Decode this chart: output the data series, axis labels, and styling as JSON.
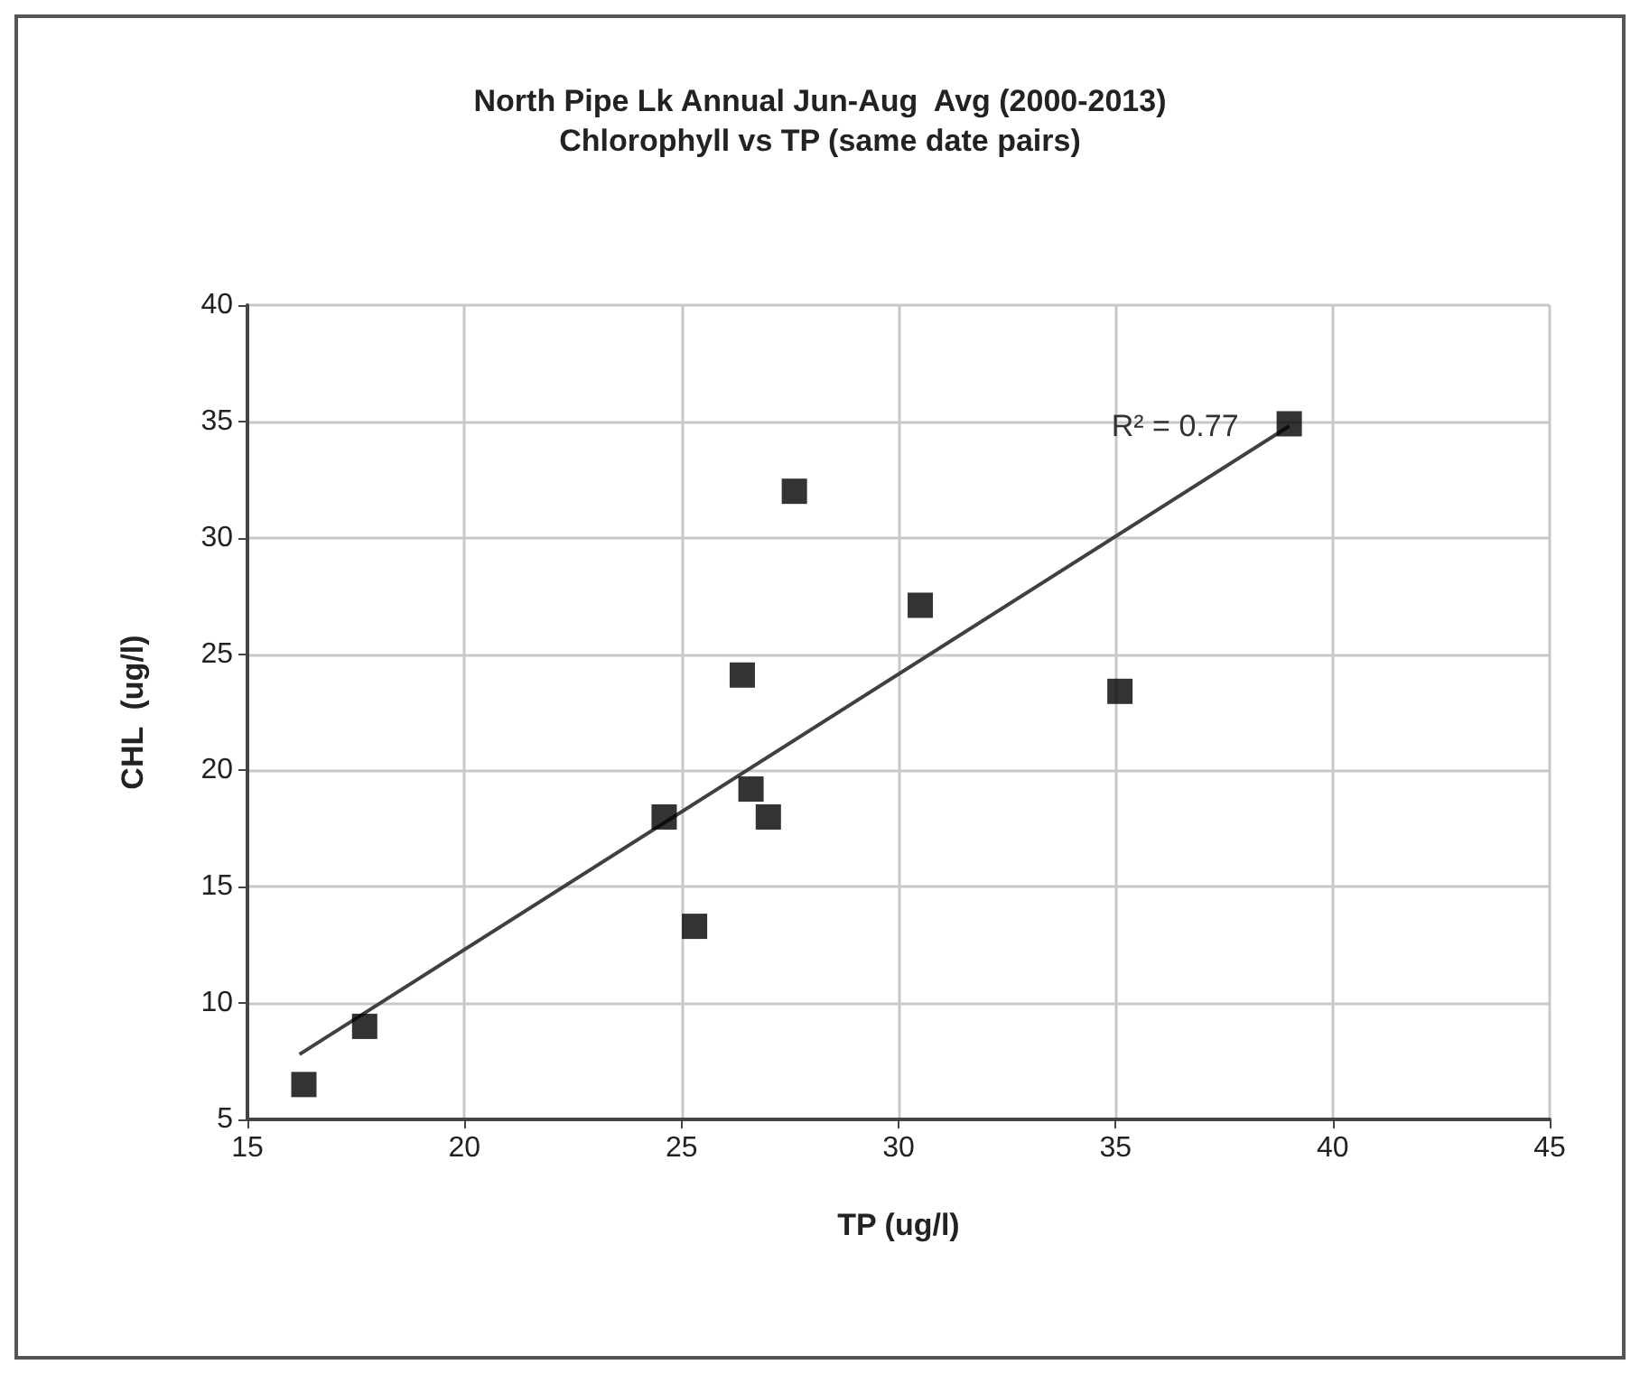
{
  "chart_data": {
    "type": "scatter",
    "title": "North Pipe Lk Annual Jun-Aug  Avg (2000-2013)\nChlorophyll vs TP (same date pairs)",
    "xlabel": "TP (ug/l)",
    "ylabel": "CHL  (ug/l)",
    "x": [
      16.3,
      17.7,
      24.6,
      25.3,
      26.4,
      26.6,
      27.0,
      27.6,
      30.5,
      35.1,
      39.0
    ],
    "series": [
      {
        "color": "#000000",
        "values": [
          6.5,
          9.0,
          18.0,
          13.3,
          24.1,
          19.2,
          18.0,
          32.0,
          27.1,
          23.4,
          34.9
        ]
      },
      {
        "type": "line",
        "marker": "none",
        "color": "#404040",
        "x": [
          16.2,
          39.0
        ],
        "values": [
          7.8,
          34.8
        ]
      }
    ],
    "annotations": [
      "R² = 0.77"
    ],
    "xlim": [
      15,
      45
    ],
    "xticks": [
      15,
      20,
      25,
      30,
      35,
      40,
      45
    ],
    "ylim": [
      5,
      40
    ],
    "yticks": [
      5,
      10,
      15,
      20,
      25,
      30,
      35,
      40
    ],
    "grid": true,
    "marker": "square",
    "line_style": "solid"
  }
}
